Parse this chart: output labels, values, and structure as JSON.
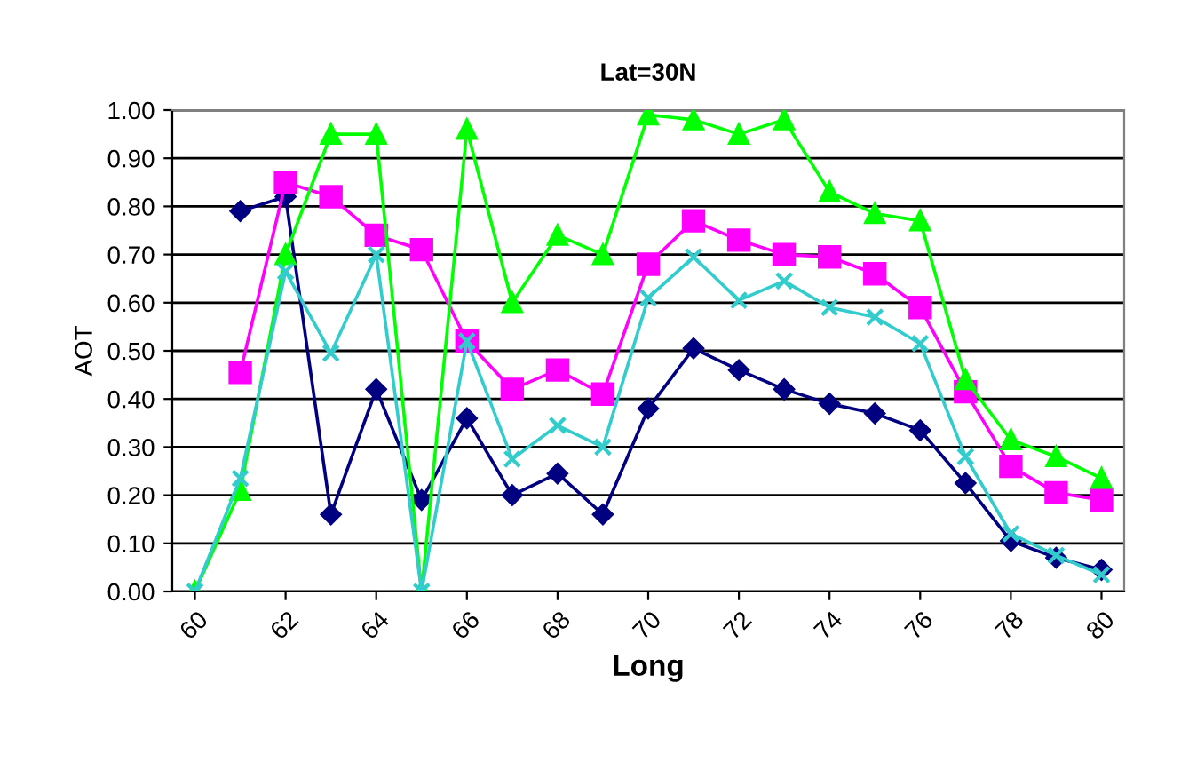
{
  "chart_data": {
    "type": "line",
    "title": "Lat=30N",
    "xlabel": "Long",
    "ylabel": "AOT",
    "x": [
      60,
      61,
      62,
      63,
      64,
      65,
      66,
      67,
      68,
      69,
      70,
      71,
      72,
      73,
      74,
      75,
      76,
      77,
      78,
      79,
      80
    ],
    "xlim": [
      59.5,
      80.5
    ],
    "xticks": [
      60,
      62,
      64,
      66,
      68,
      70,
      72,
      74,
      76,
      78,
      80
    ],
    "ylim": [
      0,
      1
    ],
    "yticks": [
      {
        "value": 0,
        "label": "0.00"
      },
      {
        "value": 0.1,
        "label": "0.10"
      },
      {
        "value": 0.2,
        "label": "0.20"
      },
      {
        "value": 0.3,
        "label": "0.30"
      },
      {
        "value": 0.4,
        "label": "0.40"
      },
      {
        "value": 0.5,
        "label": "0.50"
      },
      {
        "value": 0.6,
        "label": "0.60"
      },
      {
        "value": 0.7,
        "label": "0.70"
      },
      {
        "value": 0.8,
        "label": "0.80"
      },
      {
        "value": 0.9,
        "label": "0.90"
      },
      {
        "value": 1,
        "label": "1.00"
      }
    ],
    "grid": "y",
    "legend": false,
    "series": [
      {
        "color": "#000080",
        "marker": "diamond",
        "values": [
          null,
          0.79,
          0.82,
          0.16,
          0.42,
          0.19,
          0.36,
          0.2,
          0.245,
          0.16,
          0.38,
          0.505,
          0.46,
          0.42,
          0.39,
          0.37,
          0.335,
          0.225,
          0.105,
          0.07,
          0.045
        ]
      },
      {
        "color": "#ff00ff",
        "marker": "square",
        "values": [
          null,
          0.455,
          0.85,
          0.82,
          0.74,
          0.71,
          0.52,
          0.42,
          0.46,
          0.41,
          0.68,
          0.77,
          0.73,
          0.7,
          0.695,
          0.66,
          0.59,
          0.415,
          0.26,
          0.205,
          0.19
        ]
      },
      {
        "color": "#00ff00",
        "marker": "triangle",
        "values": [
          0,
          0.21,
          0.7,
          0.95,
          0.95,
          0,
          0.96,
          0.6,
          0.74,
          0.7,
          0.99,
          0.98,
          0.95,
          0.98,
          0.83,
          0.785,
          0.77,
          0.44,
          0.315,
          0.28,
          0.235
        ]
      },
      {
        "color": "#33cccc",
        "marker": "cross",
        "values": [
          0,
          0.235,
          0.665,
          0.495,
          0.7,
          0,
          0.52,
          0.275,
          0.345,
          0.3,
          0.61,
          0.695,
          0.605,
          0.645,
          0.59,
          0.57,
          0.515,
          0.28,
          0.12,
          0.075,
          0.035
        ]
      }
    ]
  }
}
